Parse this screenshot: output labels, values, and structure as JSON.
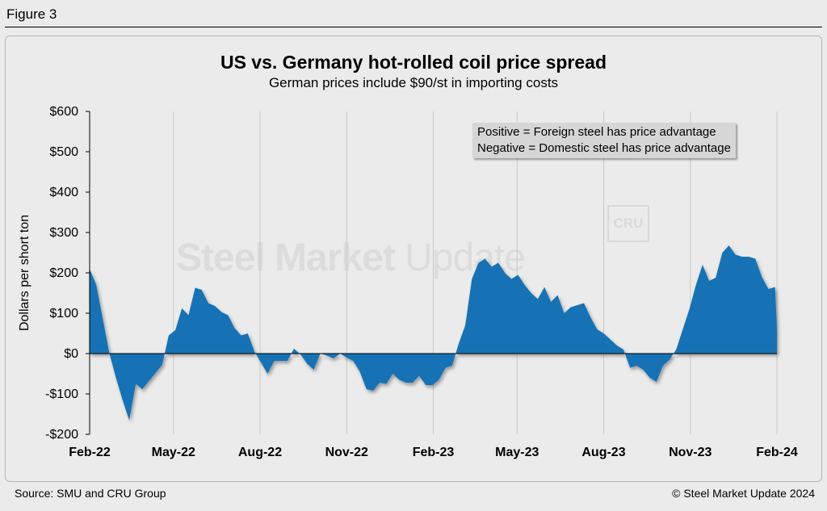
{
  "figure_label": "Figure 3",
  "source": "Source: SMU and CRU Group",
  "copyright": "© Steel Market Update 2024",
  "watermark": {
    "bold": "Steel Market",
    "light": "Update"
  },
  "logo_text": "CRU",
  "legend_note": {
    "line1": "Positive = Foreign steel has price advantage",
    "line2": "Negative = Domestic steel has price advantage"
  },
  "colors": {
    "fill": "#1272b5",
    "grid": "#c8c8c8",
    "background": "#ebebeb"
  },
  "chart_data": {
    "type": "area",
    "title": "US vs. Germany hot-rolled coil price spread",
    "subtitle": "German prices include $90/st in importing costs",
    "ylabel": "Dollars per short ton",
    "xlabel": "",
    "ylim": [
      -200,
      600
    ],
    "yticks": [
      -200,
      -100,
      0,
      100,
      200,
      300,
      400,
      500,
      600
    ],
    "ytick_labels": [
      "-$200",
      "-$100",
      "$0",
      "$100",
      "$200",
      "$300",
      "$400",
      "$500",
      "$600"
    ],
    "xlim": [
      "2022-02-01",
      "2024-02-01"
    ],
    "xticks": [
      "2022-02-01",
      "2022-05-01",
      "2022-08-01",
      "2022-11-01",
      "2023-02-01",
      "2023-05-01",
      "2023-08-01",
      "2023-11-01",
      "2024-02-01"
    ],
    "xtick_labels": [
      "Feb-22",
      "May-22",
      "Aug-22",
      "Nov-22",
      "Feb-23",
      "May-23",
      "Aug-23",
      "Nov-23",
      "Feb-24"
    ],
    "grid": "vertical",
    "series": [
      {
        "values": [
          [
            "2022-02-01",
            210
          ],
          [
            "2022-02-08",
            170
          ],
          [
            "2022-02-15",
            85
          ],
          [
            "2022-02-22",
            0
          ],
          [
            "2022-03-01",
            -60
          ],
          [
            "2022-03-08",
            -115
          ],
          [
            "2022-03-15",
            -165
          ],
          [
            "2022-03-22",
            -75
          ],
          [
            "2022-03-29",
            -88
          ],
          [
            "2022-04-05",
            -68
          ],
          [
            "2022-04-12",
            -48
          ],
          [
            "2022-04-19",
            -28
          ],
          [
            "2022-04-26",
            45
          ],
          [
            "2022-05-03",
            58
          ],
          [
            "2022-05-10",
            112
          ],
          [
            "2022-05-17",
            95
          ],
          [
            "2022-05-24",
            163
          ],
          [
            "2022-05-31",
            158
          ],
          [
            "2022-06-07",
            125
          ],
          [
            "2022-06-14",
            118
          ],
          [
            "2022-06-21",
            103
          ],
          [
            "2022-06-28",
            95
          ],
          [
            "2022-07-05",
            63
          ],
          [
            "2022-07-12",
            45
          ],
          [
            "2022-07-19",
            50
          ],
          [
            "2022-07-26",
            5
          ],
          [
            "2022-08-02",
            -22
          ],
          [
            "2022-08-09",
            -50
          ],
          [
            "2022-08-16",
            -18
          ],
          [
            "2022-08-23",
            -18
          ],
          [
            "2022-08-30",
            -18
          ],
          [
            "2022-09-06",
            12
          ],
          [
            "2022-09-13",
            -2
          ],
          [
            "2022-09-20",
            -25
          ],
          [
            "2022-09-27",
            -40
          ],
          [
            "2022-10-04",
            0
          ],
          [
            "2022-10-11",
            -5
          ],
          [
            "2022-10-18",
            -12
          ],
          [
            "2022-10-25",
            0
          ],
          [
            "2022-11-01",
            -10
          ],
          [
            "2022-11-08",
            -18
          ],
          [
            "2022-11-15",
            -45
          ],
          [
            "2022-11-22",
            -88
          ],
          [
            "2022-11-29",
            -92
          ],
          [
            "2022-12-06",
            -72
          ],
          [
            "2022-12-13",
            -75
          ],
          [
            "2022-12-20",
            -50
          ],
          [
            "2022-12-27",
            -65
          ],
          [
            "2023-01-03",
            -72
          ],
          [
            "2023-01-10",
            -72
          ],
          [
            "2023-01-17",
            -55
          ],
          [
            "2023-01-24",
            -78
          ],
          [
            "2023-01-31",
            -78
          ],
          [
            "2023-02-07",
            -65
          ],
          [
            "2023-02-14",
            -35
          ],
          [
            "2023-02-21",
            -30
          ],
          [
            "2023-02-28",
            25
          ],
          [
            "2023-03-07",
            70
          ],
          [
            "2023-03-14",
            185
          ],
          [
            "2023-03-21",
            225
          ],
          [
            "2023-03-28",
            235
          ],
          [
            "2023-04-04",
            215
          ],
          [
            "2023-04-11",
            225
          ],
          [
            "2023-04-18",
            200
          ],
          [
            "2023-04-25",
            185
          ],
          [
            "2023-05-02",
            195
          ],
          [
            "2023-05-09",
            170
          ],
          [
            "2023-05-16",
            150
          ],
          [
            "2023-05-23",
            135
          ],
          [
            "2023-05-30",
            165
          ],
          [
            "2023-06-06",
            128
          ],
          [
            "2023-06-13",
            145
          ],
          [
            "2023-06-20",
            100
          ],
          [
            "2023-06-27",
            115
          ],
          [
            "2023-07-04",
            120
          ],
          [
            "2023-07-11",
            125
          ],
          [
            "2023-07-18",
            90
          ],
          [
            "2023-07-25",
            60
          ],
          [
            "2023-08-01",
            50
          ],
          [
            "2023-08-08",
            35
          ],
          [
            "2023-08-15",
            20
          ],
          [
            "2023-08-22",
            10
          ],
          [
            "2023-08-29",
            -35
          ],
          [
            "2023-09-05",
            -30
          ],
          [
            "2023-09-12",
            -40
          ],
          [
            "2023-09-19",
            -60
          ],
          [
            "2023-09-26",
            -70
          ],
          [
            "2023-10-03",
            -30
          ],
          [
            "2023-10-10",
            -15
          ],
          [
            "2023-10-17",
            10
          ],
          [
            "2023-10-24",
            60
          ],
          [
            "2023-10-31",
            110
          ],
          [
            "2023-11-07",
            170
          ],
          [
            "2023-11-14",
            220
          ],
          [
            "2023-11-21",
            180
          ],
          [
            "2023-11-28",
            188
          ],
          [
            "2023-12-05",
            250
          ],
          [
            "2023-12-12",
            268
          ],
          [
            "2023-12-19",
            245
          ],
          [
            "2023-12-26",
            240
          ],
          [
            "2024-01-02",
            240
          ],
          [
            "2024-01-09",
            235
          ],
          [
            "2024-01-16",
            190
          ],
          [
            "2024-01-23",
            160
          ],
          [
            "2024-01-30",
            165
          ],
          [
            "2024-02-01",
            60
          ]
        ]
      }
    ]
  }
}
